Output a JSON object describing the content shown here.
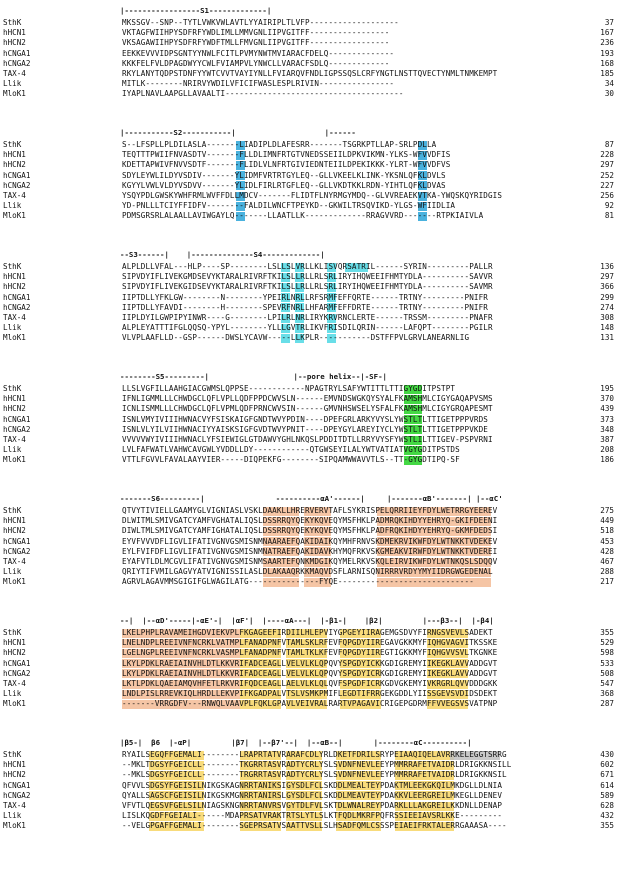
{
  "colors": {
    "blue": "#2aa4d8",
    "cyan": "#4fd8e4",
    "green": "#3ad63a",
    "orange": "#f3b78f",
    "yellow": "#f6d25a",
    "grey": "#bfbfbf"
  },
  "blocks": [
    {
      "header": "|-----------------S1-------------|",
      "rows": [
        {
          "name": "SthK",
          "seq": "MKSSGV--SNP--TYTLVWKVWLAVTLYYAIRIPLTLVFP-------------------",
          "num": "37"
        },
        {
          "name": "hHCN1",
          "seq": "VKTAGFWIIHPYSDFRFYWDLIMLLMMVGNLIIPVGITFF-----------------",
          "num": "167"
        },
        {
          "name": "hHCN2",
          "seq": "VKSAGAWIIHPYSDFRFYWDFTMLLFMVGNLIIPVGITFF-----------------",
          "num": "236"
        },
        {
          "name": "hCNGA1",
          "seq": "EEKKEVVVIDPSGNTYYNWLFCITLPVMYNWTMVIARACFDELQ--------------",
          "num": "193"
        },
        {
          "name": "hCNGA2",
          "seq": "KKKFELFVLDPAGDWYYCWLFVIAMPVLYNWCLLVARACFSDLQ-------------",
          "num": "168"
        },
        {
          "name": "TAX-4",
          "seq": "RKYLANYTQDPSTDNFYYWTCVVTVAYIYNLLFVIARQVFNDLIGPSSQSLCRFYNGTLNSTTQVECTYNMLTNMKEMPT",
          "num": "185"
        },
        {
          "name": "Llik",
          "seq": "MITLK--------NRIRVYWDILVFICIFWASLESPLRIVIN----------------",
          "num": "34"
        },
        {
          "name": "MloK1",
          "seq": "IYAPLNAVLAAPGLLAVAALTI--------------------------------------",
          "num": "30"
        }
      ]
    },
    {
      "header": "|-----------S2-----------|                    |------",
      "rows": [
        {
          "name": "SthK",
          "seq": "S--LFSPLLPLDILASLA-------LIADIPLDLAFESRR-------TSGRKPTLLAP-SRLPDLLA",
          "num": "87"
        },
        {
          "name": "hHCN1",
          "seq": "TEQTTTPWIIFNVASDTV-------FLLDLIMNFRTGTVNEDSSEIILDPKVIKMN-YLKS-WFVVDFIS",
          "num": "228"
        },
        {
          "name": "hHCN2",
          "seq": "KDETTAPWIVFNVVSDTF-------FLIDLVLNFRTGIVIEDNTEIILDPEKIKKK-YLRT-WFVVDFVS",
          "num": "297"
        },
        {
          "name": "hCNGA1",
          "seq": "SDYLEYWLILDYVSDIV-------YLIDMFVRTRTGYLEQ--GLLVKEELKLINK-YKSNLQFKLDVLS",
          "num": "252"
        },
        {
          "name": "hCNGA2",
          "seq": "KGYYLVWLVLDYVSDVV-------YLIDLFIRLRTGFLEQ--GLLVKDTKKLRDN-YIHTLQFKLDVAS",
          "num": "227"
        },
        {
          "name": "TAX-4",
          "seq": "YSQYPDLGWSKYWHFRMLWVFFDLLMDCV-------FLIDTFLNYRMGYMDQ--GLVVREAEKVTKA-YWQSKQYRIDGIS",
          "num": "256"
        },
        {
          "name": "Llik",
          "seq": "YD-PNLLLTCIYFFIDFV--------FALDILWNCFTPEYKD--GKWILTRSQVIKD-YLGS-WFIIDLIA",
          "num": "92"
        },
        {
          "name": "MloK1",
          "seq": "PDMSGRSRLALAALLAVIWGAYLQ-------LLAATLLK-------------RRAGVVRD-------RTPKIAIVLA",
          "num": "81"
        }
      ]
    },
    {
      "header": "--S3------|    |--------------S4-------------|",
      "rows": [
        {
          "name": "SthK",
          "seq": "ALPLDLLVFAL---HLP----SP--------LSLLSLVRLLKLISVQRSATRIL------SYRIN---------PALLR",
          "num": "136"
        },
        {
          "name": "hHCN1",
          "seq": "SIPVDYIFLIVEKGMDSEVYKTARALRIVRFTKILSLLRLLRLSRLIRYIHQWEEIFHMTYDLA----------SAVVR",
          "num": "297"
        },
        {
          "name": "hHCN2",
          "seq": "SIPVDYIFLIVEKGIDSEVYKTARALRIVRFTKILSLLRLLRLSRLIRYIHQWEEIFHMTYDLA----------SAVMR",
          "num": "366"
        },
        {
          "name": "hCNGA1",
          "seq": "IIPTDLLYFKLGW--------N--------YPEIRLNRLLRFSRMFEFFQRTE------TRTNY---------PNIFR",
          "num": "299"
        },
        {
          "name": "hCNGA2",
          "seq": "IIPTDLLYFAVDI--------H--------SPEVRFNRLLHFARMFEFFDRTE------TRTNY---------PNIFR",
          "num": "274"
        },
        {
          "name": "TAX-4",
          "seq": "IIPLDYILGWPIPYINWR----G--------LPILRLNRLIRYKRVRNCLERTE------TRSSM---------PNAFR",
          "num": "308"
        },
        {
          "name": "Llik",
          "seq": "ALPLEYATTTIFGLQQSQ-YPYL--------YLLLGVTRLIKVFRISDILQRIN------LAFQPT--------PGILR",
          "num": "148"
        },
        {
          "name": "MloK1",
          "seq": "VLVPLAAFLLD--GSP------DWSLYCAVW-----LLKPLR-----------DSTFFPVLGRVLANEARNLIG",
          "num": "131"
        }
      ]
    },
    {
      "header": "--------S5---------|                   |--pore helix--|-SF-|",
      "rows": [
        {
          "name": "SthK",
          "seq": "LLSLVGFILLAAHGIACGWMSLQPPSE------------NPAGTRYLSAFYWTITTLTTIGYGDITPSTPT",
          "num": "195"
        },
        {
          "name": "hHCN1",
          "seq": "IFNLIGMMLLLCHWDGCLQFLVPLLQDFPPDCWVSLN------EMVNDSWGKQYSYALFKAMSHMLCIGYGAQAPVSMS",
          "num": "370"
        },
        {
          "name": "hHCN2",
          "seq": "ICNLISMMLLLCHWDGCLQFLVPMLQDFPRNCWVSIN------GMVNHSWSELYSFALFKAMSHMLCIGYGRQAPESMT",
          "num": "439"
        },
        {
          "name": "hCNGA1",
          "seq": "ISNLVMYIVIIIHWNACVYFSISKAIGFGNDTWVYPDIN----DPEFGRLARKYVYSLYWSTLTLTTIGETPPPVRDS",
          "num": "373"
        },
        {
          "name": "hCNGA2",
          "seq": "ISNLVLYILVIIHWNACIYYAISKSIGFGVDTWVYPNIT----DPEYGYLAREYIYCLYWSTLTLTTIGETPPPVKDE",
          "num": "348"
        },
        {
          "name": "TAX-4",
          "seq": "VVVVVWYIVIIIHWNACLYFSIEWIGLGTDAWVYGHLNKQSLPDDITDTLLRRYVYSFYWSTLILTTIGEV-PSPVRNI",
          "num": "387"
        },
        {
          "name": "Llik",
          "seq": "LVLFAFWATLVAHWCAVGWLYVDDLLDY------------QTGWSEYILALYWTVATIATVGYGDITPSTDS",
          "num": "208"
        },
        {
          "name": "MloK1",
          "seq": "VTTLFGVVLFAVALAAYVIER-----DIQPEKFG--------SIPQAMWWAVVTLS--TT-GYGDTIPQ-SF",
          "num": "186"
        }
      ]
    },
    {
      "header": "-------S6---------|                ----------αA'------|     |-------αB'-------| |--αC'",
      "rows": [
        {
          "name": "SthK",
          "seq": "QTVYTIVIELLGAAMYGLVIGNIASLVSKLDAAKLLHRERVERVTAFLSYKRISPELQRRIIEYFDYLWETRRGYEEREV",
          "num": "275"
        },
        {
          "name": "hHCN1",
          "seq": "DLWITMLSMIVGATCYAMFVGHATALIQSLDSSRRQYQEKYKQVEQYMSFHKLPADMRQKIHDYYEHRYQ-GKIFDEENI",
          "num": "449"
        },
        {
          "name": "hHCN2",
          "seq": "DIWLTMLSMIVGATCYAMFIGHATALIQSLDSSRRQYQEKYKQVEQYMSFHKLPADFRQKIHDYYEHRYQ-GKMFDEDSI",
          "num": "518"
        },
        {
          "name": "hCNGA1",
          "seq": "EYVFVVVDFLIGVLIFATIVGNVGSMISNMNAARAEFQAKIDAIKQYMHFRNVSKDMEKRVIKWFDYLWTNKKTVDEKEV",
          "num": "453"
        },
        {
          "name": "hCNGA2",
          "seq": "EYLFVIFDFLIGVLIFATIVGNVGSMISNMNATRAEFQAKIDAVKHYMQFRKVSKGMEAKVIRWFDYLWTNKKTVDEREI",
          "num": "428"
        },
        {
          "name": "TAX-4",
          "seq": "EYAFVTLDLMCGVLIFATIVGNVGSMISNMSAARTEFQNKMDGIKQYMELRKVSKQLEIRVIKWFDYLWTNKQSLSDQQV",
          "num": "467"
        },
        {
          "name": "Llik",
          "seq": "QRIYTIFVMILGAGVYATVIGNISSILASLDLAKAAQRKKMAQVDSFLARNISQNIRRRVRDYYMYIIDRGWGEDENAL",
          "num": "288"
        },
        {
          "name": "MloK1",
          "seq": "AGRVLAGAVMMSGIGIFGLWAGILATG---------------FYQE-----------------------------",
          "num": "217"
        }
      ]
    },
    {
      "header": "--|  |--αD'-----|-αE'-|  |αF'|  |----αA---|  |-β1-|    |β2|         |---β3--|  |-β4|",
      "rows": [
        {
          "name": "SthK",
          "seq": "LKELPHPLRAVAMEIHGDVIEKVPLFKGAGEEFIRDIILHLEPVIYGPGEYIIRAGEMGSDVYFIRNGSVEVLSADEKT",
          "num": "355"
        },
        {
          "name": "hHCN1",
          "seq": "LNELNDPLREEIVNFNCRKLVATMPLFANADPNFVTAMLSKLRFEVFQPGDYIIREGAVGKKMYFIQHGVAGVITKSSKE",
          "num": "529"
        },
        {
          "name": "hHCN2",
          "seq": "LGELNGPLREEIVNFNCRKLVASMPLFANADPNFVTAMLTKLKFEVFQPGDYIIREGTIGKKMYFIQHGVVSVLTKGNKE",
          "num": "598"
        },
        {
          "name": "hCNGA1",
          "seq": "LKYLPDKLRAEIAINVHLDTLKKVRIFADCEAGLLVELVLKLQPQVYSPGDYICKKGDIGREMYIIKEGKLAVVADDGVT",
          "num": "533"
        },
        {
          "name": "hCNGA2",
          "seq": "LKYLPDKLRAEIAINVHLDTLKKVRIFADCEAGLLVELVLKLQPQVYSPGDYICRKGDIGREMYIIKEGKLAVVADDGVT",
          "num": "508"
        },
        {
          "name": "TAX-4",
          "seq": "LKTLPDKLQAEIAMQVHFETLRKVRIFQDCEAGLLAELVLKLQLQVFSPGDFICRKGDVGKEMYIVKRGRLQVVDDDGKK",
          "num": "547"
        },
        {
          "name": "Llik",
          "seq": "LNDLPISLRREVKIQLHRDLLEKVPIFKGADPALVTSLVSMKPMIFLEGDTIFRRGEKGDDLYIISSGEVSVDIDSDEKT",
          "num": "368"
        },
        {
          "name": "MloK1",
          "seq": "-------VRRGDFV---RNWQLVAAVPLFQKLGPAVLVEIVRALRARTVPAGAVICRIGEPGDRMFFVVEGSVSVATPNP",
          "num": "287"
        }
      ]
    },
    {
      "header": "|β5-|  β6  |-αP|         |β7|  |--β7'--|  |--αB--|       |--------αC----------|",
      "rows": [
        {
          "name": "SthK",
          "seq": "RYAILSEGQFFGEMALI--------LRAPRTATVRARAFCDLYRLDKETFDRILSRYPEIAAQIQELAVRRKELEGGTSRRG",
          "num": "430"
        },
        {
          "name": "hHCN1",
          "seq": "--MKLTDGSYFGEICLL--------TKGRRTASVRADTYCRLYSLSVDNFNEVLEEYPMMRRAFETVAIDRLDRIGKKNSILL",
          "num": "602"
        },
        {
          "name": "hHCN2",
          "seq": "--MKLSDGSYFGEICLL--------TRGRRTASVRADTYCRLYSLSVDNFNEVLEEYPMMRRAFETVAIDRLDRIGKKNSIL",
          "num": "671"
        },
        {
          "name": "hCNGA1",
          "seq": "QFVVLSDGSYFGEISILNIKGSKAGNRRTANIKSIGYSDLFCLSKDDLMEALTEYPDAKTMLEEKGKQILMKDGLLDLNIA",
          "num": "614"
        },
        {
          "name": "hCNGA2",
          "seq": "QYALLSAGSCFGEISILNIKGSKMGNRRTANIRSLGYSDLFCLSKDDLMEAVTEYPDAKKVLEERGREILMKEGLLDENEV",
          "num": "589"
        },
        {
          "name": "TAX-4",
          "seq": "VFVTLQEGSVFGELSILNIAGSKNGNRRTANVRSVGYTDLFVLSKTDLWNALREYPDARKLLLAKGREILKKDNLLDENAP",
          "num": "628"
        },
        {
          "name": "Llik",
          "seq": "LISLKQGDFFGEIALI------MDAPRSATVRAKTRTSLYTLSLKTFQDLMKRFPQFRSSIEEIAVSRLKKE---------",
          "num": "432"
        },
        {
          "name": "MloK1",
          "seq": "--VELGPGAFFGEMALI--------SGEPRSATVSAATTVSLLSLHSADFQMLCSSSPEIAEIFRKTALERRGAAASA----",
          "num": "355"
        }
      ]
    }
  ],
  "highlights": [
    {
      "b": 1,
      "r": [
        0,
        7
      ],
      "c": [
        25,
        26
      ],
      "color": "blue"
    },
    {
      "b": 1,
      "r": [
        0,
        0
      ],
      "c": [
        65,
        66
      ],
      "color": "blue"
    },
    {
      "b": 1,
      "r": [
        1,
        7
      ],
      "c": [
        65,
        66
      ],
      "color": "blue"
    },
    {
      "b": 2,
      "r": [
        0,
        7
      ],
      "c": [
        35,
        36
      ],
      "color": "cyan"
    },
    {
      "b": 2,
      "r": [
        0,
        7
      ],
      "c": [
        45,
        46
      ],
      "color": "cyan"
    },
    {
      "b": 2,
      "r": [
        0,
        7
      ],
      "c": [
        38,
        39
      ],
      "color": "cyan"
    },
    {
      "b": 2,
      "r": [
        0,
        0
      ],
      "c": [
        49,
        53
      ],
      "color": "cyan"
    },
    {
      "b": 3,
      "r": [
        0,
        7
      ],
      "c": [
        62,
        65
      ],
      "color": "green"
    },
    {
      "b": 4,
      "r": [
        0,
        7
      ],
      "c": [
        31,
        38
      ],
      "color": "orange"
    },
    {
      "b": 4,
      "r": [
        0,
        7
      ],
      "c": [
        40,
        45
      ],
      "color": "orange"
    },
    {
      "b": 4,
      "r": [
        0,
        7
      ],
      "c": [
        56,
        72
      ],
      "color": "orange"
    },
    {
      "b": 4,
      "r": [
        0,
        7
      ],
      "c": [
        73,
        80
      ],
      "color": "orange"
    },
    {
      "b": 5,
      "r": [
        0,
        7
      ],
      "c": [
        0,
        25
      ],
      "color": "orange"
    },
    {
      "b": 5,
      "r": [
        0,
        7
      ],
      "c": [
        26,
        34
      ],
      "color": "yellow"
    },
    {
      "b": 5,
      "r": [
        0,
        7
      ],
      "c": [
        36,
        44
      ],
      "color": "yellow"
    },
    {
      "b": 5,
      "r": [
        0,
        7
      ],
      "c": [
        48,
        56
      ],
      "color": "yellow"
    },
    {
      "b": 5,
      "r": [
        0,
        7
      ],
      "c": [
        67,
        75
      ],
      "color": "yellow"
    },
    {
      "b": 6,
      "r": [
        0,
        7
      ],
      "c": [
        6,
        17
      ],
      "color": "yellow"
    },
    {
      "b": 6,
      "r": [
        0,
        7
      ],
      "c": [
        26,
        34
      ],
      "color": "yellow"
    },
    {
      "b": 6,
      "r": [
        0,
        7
      ],
      "c": [
        36,
        43
      ],
      "color": "yellow"
    },
    {
      "b": 6,
      "r": [
        0,
        7
      ],
      "c": [
        47,
        56
      ],
      "color": "yellow"
    },
    {
      "b": 6,
      "r": [
        0,
        7
      ],
      "c": [
        60,
        72
      ],
      "color": "yellow"
    },
    {
      "b": 6,
      "r": [
        0,
        0
      ],
      "c": [
        72,
        82
      ],
      "color": "grey"
    }
  ]
}
